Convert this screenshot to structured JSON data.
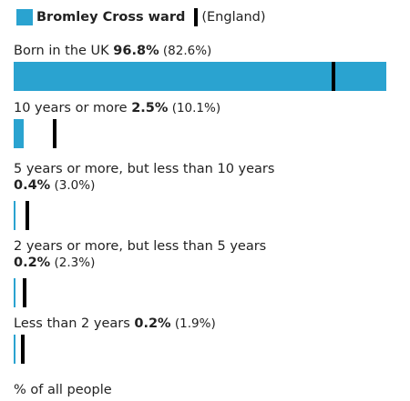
{
  "legend": {
    "area_name": "Bromley Cross ward",
    "comparator_label": "(England)",
    "area_color": "#2aa3d0",
    "marker_color": "#000000"
  },
  "chart_data": {
    "type": "bar",
    "orientation": "horizontal",
    "xlim": [
      0,
      100
    ],
    "unit": "% of all people",
    "series": [
      {
        "name": "Bromley Cross ward",
        "values": [
          96.8,
          2.5,
          0.4,
          0.2,
          0.2
        ]
      },
      {
        "name": "(England)",
        "values": [
          82.6,
          10.1,
          3.0,
          2.3,
          1.9
        ]
      }
    ],
    "categories": [
      "Born in the UK",
      "10 years or more",
      "5 years or more, but less than 10 years",
      "2 years or more, but less than 5 years",
      "Less than 2 years"
    ],
    "rows": [
      {
        "label": "Born in the UK",
        "value_text": "96.8%",
        "comparator_text": "(82.6%)"
      },
      {
        "label": "10 years or more",
        "value_text": "2.5%",
        "comparator_text": "(10.1%)"
      },
      {
        "label": "5 years or more, but less than 10 years",
        "value_text": "0.4%",
        "comparator_text": "(3.0%)"
      },
      {
        "label": "2 years or more, but less than 5 years",
        "value_text": "0.2%",
        "comparator_text": "(2.3%)"
      },
      {
        "label": "Less than 2 years",
        "value_text": "0.2%",
        "comparator_text": "(1.9%)"
      }
    ]
  },
  "footer": {
    "axis_label": "% of all people"
  }
}
